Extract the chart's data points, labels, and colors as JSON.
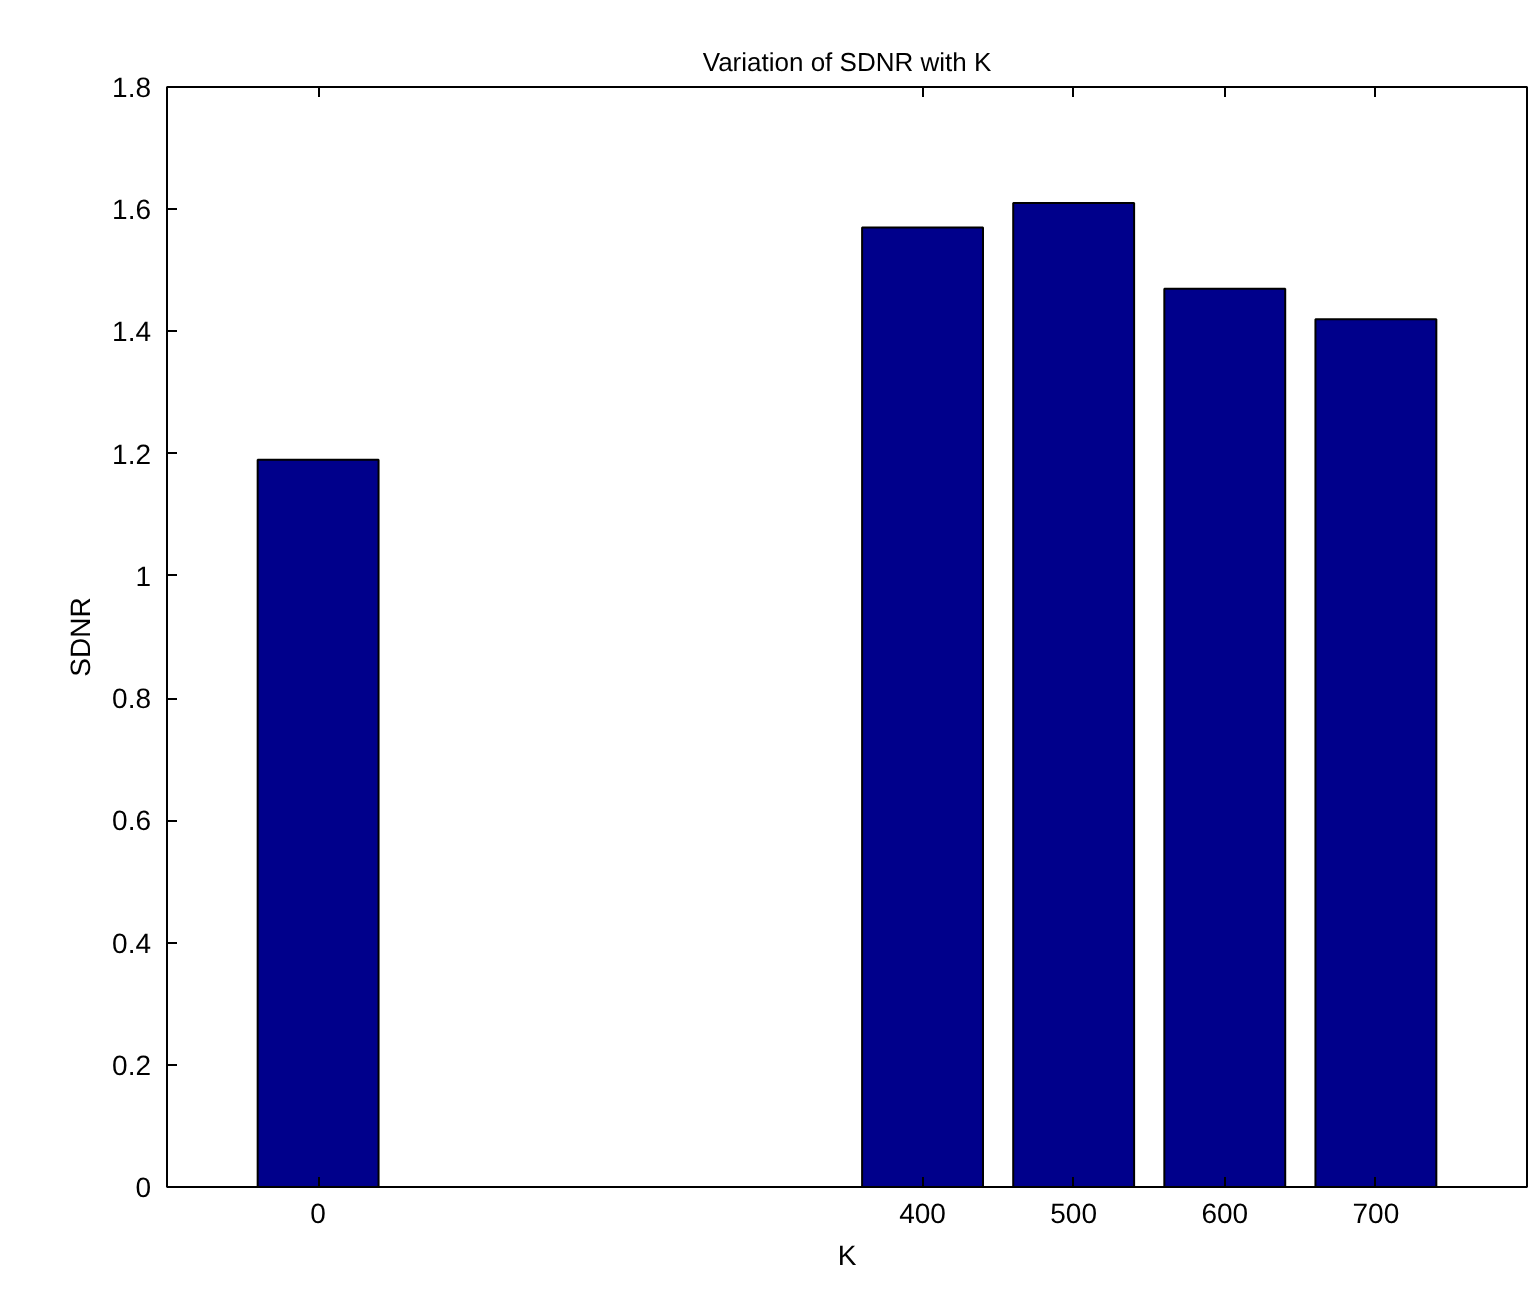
{
  "chart_data": {
    "type": "bar",
    "title": "Variation of SDNR with K",
    "xlabel": "K",
    "ylabel": "SDNR",
    "x": [
      0,
      400,
      500,
      600,
      700
    ],
    "values": [
      1.19,
      1.57,
      1.61,
      1.47,
      1.42
    ],
    "color": "#00008b",
    "xlim": [
      -100,
      800
    ],
    "xticks": [
      0,
      400,
      500,
      600,
      700
    ],
    "ylim": [
      0,
      1.8
    ],
    "yticks": [
      0,
      {
        "value": 0.2,
        "label": "0.2"
      },
      {
        "value": 0.4,
        "label": "0.4"
      },
      {
        "value": 0.6,
        "label": "0.6"
      },
      {
        "value": 0.8,
        "label": "0.8"
      },
      1,
      {
        "value": 1.2,
        "label": "1.2"
      },
      {
        "value": 1.4,
        "label": "1.4"
      },
      {
        "value": 1.6,
        "label": "1.6"
      },
      {
        "value": 1.8,
        "label": "1.8"
      }
    ],
    "grid": false
  }
}
